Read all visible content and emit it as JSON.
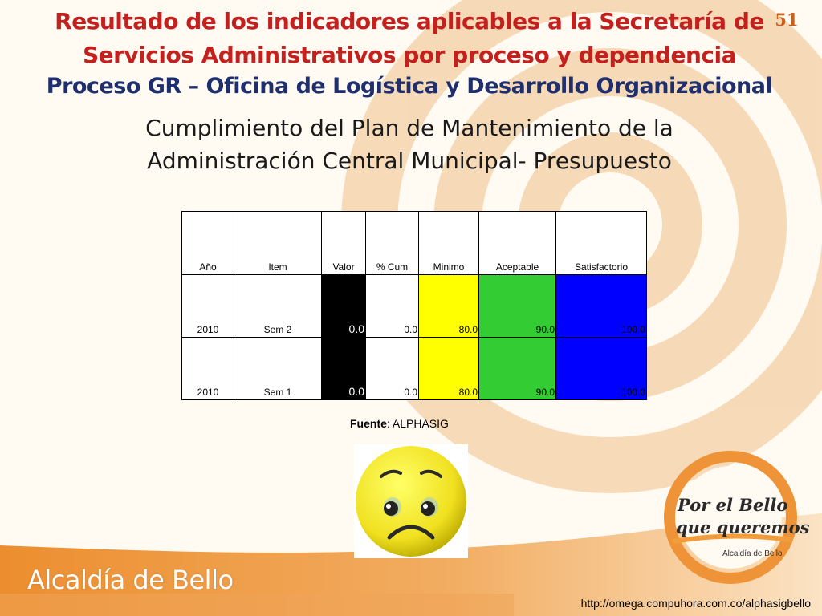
{
  "slide": {
    "page_number": "51",
    "title_line1": "Resultado de los indicadores aplicables a la Secretaría de",
    "title_line2": "Servicios Administrativos por proceso y dependencia",
    "process_title": "Proceso GR – Oficina de Logística y Desarrollo Organizacional",
    "subtitle_line1": "Cumplimiento del Plan de Mantenimiento de la",
    "subtitle_line2": "Administración Central Municipal- Presupuesto"
  },
  "table": {
    "headers": {
      "ano": "Año",
      "item": "Item",
      "valor": "Valor",
      "cum": "% Cum",
      "minimo": "Minimo",
      "aceptable": "Aceptable",
      "satisfactorio": "Satisfactorio"
    },
    "rows": [
      {
        "ano": "2010",
        "item": "Sem 2",
        "valor": "0.0",
        "cum": "0.0",
        "minimo": "80.0",
        "aceptable": "90.0",
        "satisfactorio": "100.0"
      },
      {
        "ano": "2010",
        "item": "Sem 1",
        "valor": "0.0",
        "cum": "0.0",
        "minimo": "80.0",
        "aceptable": "90.0",
        "satisfactorio": "100.0"
      }
    ]
  },
  "source": {
    "label": "Fuente",
    "value": ": ALPHASIG"
  },
  "indicator_icon": "sad-face-icon",
  "logo": {
    "line1": "Por el Bello",
    "line2": "que queremos",
    "sub": "Alcaldía de Bello"
  },
  "footer": {
    "brand": "Alcaldía de Bello",
    "url": "http://omega.compuhora.com.co/alphasigbello"
  },
  "colors": {
    "title_red": "#c3201e",
    "title_blue": "#1f2f6e",
    "band_orange": "#e8892e",
    "range_min": "#ffff00",
    "range_acceptable": "#33cc33",
    "range_satisfactory": "#0000ff",
    "value_cell": "#000000"
  }
}
